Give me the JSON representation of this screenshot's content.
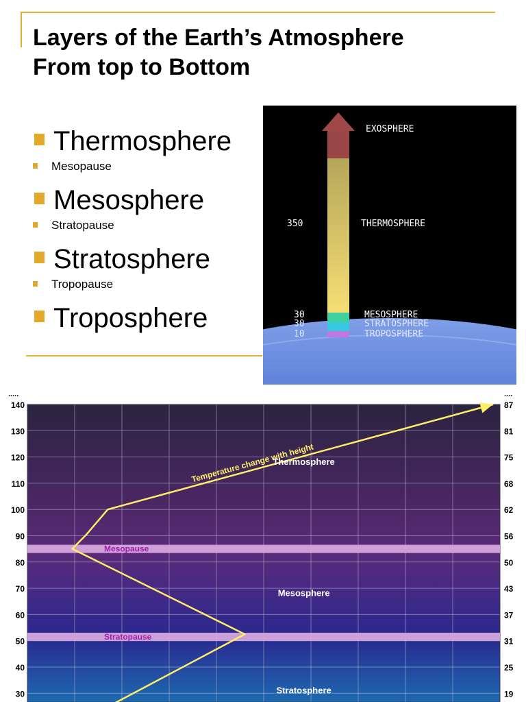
{
  "slide": {
    "title_line1": "Layers of the Earth’s Atmosphere",
    "title_line2": "From top to Bottom"
  },
  "bullets": [
    {
      "text": "Thermosphere",
      "level": 1
    },
    {
      "text": "Mesopause",
      "level": 2
    },
    {
      "text": "Mesosphere",
      "level": 1
    },
    {
      "text": "Stratopause",
      "level": 2
    },
    {
      "text": "Stratosphere",
      "level": 1
    },
    {
      "text": "Tropopause",
      "level": 2
    },
    {
      "text": "Troposphere",
      "level": 1
    }
  ],
  "atmosphere_image": {
    "labels": {
      "exosphere": "EXOSPHERE",
      "thermosphere": "THERMOSPHERE",
      "mesosphere": "MESOSPHERE",
      "stratosphere": "STRATOSPHERE",
      "troposphere": "TROPOSPHERE"
    },
    "altitudes": {
      "thermosphere": "350",
      "mesosphere": "30",
      "stratosphere": "30",
      "troposphere": "10"
    },
    "colors": {
      "background": "#000000",
      "arrow_head": "#a04848",
      "column_top": "#c8b55c",
      "column_bottom": "#f2dc72",
      "mesosphere_band": "#3fd0a0",
      "stratosphere_band": "#35c8e0",
      "troposphere_band": "#c078e0",
      "earth": "#5a7fd8"
    }
  },
  "chart_data": {
    "type": "line",
    "left_axis": {
      "corner_label": ".....",
      "ticks": [
        140,
        130,
        120,
        110,
        100,
        90,
        80,
        70,
        60,
        50,
        40,
        30
      ],
      "range": [
        25,
        140
      ]
    },
    "right_axis": {
      "corner_label": "....",
      "ticks": [
        87,
        81,
        75,
        68,
        62,
        56,
        50,
        43,
        37,
        31,
        25,
        19
      ]
    },
    "vertical_gridlines": 9,
    "grid": true,
    "series": [
      {
        "values_xy": [
          [
            1.35,
            21.5
          ],
          [
            4.6,
            52.5
          ],
          [
            0.95,
            85
          ],
          [
            1.25,
            90.5
          ],
          [
            1.7,
            100
          ],
          [
            9.85,
            140
          ]
        ],
        "color": "#ffee66",
        "label": "Temperature change with height"
      }
    ],
    "x_range": [
      0,
      10
    ],
    "bands": [
      {
        "label": "Mesopause",
        "altitude": 85,
        "color": "#d9a9e0",
        "label_color": "#a020b0"
      },
      {
        "label": "Stratopause",
        "altitude": 51.5,
        "color": "#d9a9e0",
        "label_color": "#a020b0"
      }
    ],
    "region_labels": [
      {
        "text": "Thermosphere",
        "x": 5.85,
        "y": 117
      },
      {
        "text": "Mesosphere",
        "x": 5.85,
        "y": 67
      },
      {
        "text": "Stratosphere",
        "x": 5.85,
        "y": 30
      }
    ],
    "colors": {
      "top": "#2a2440",
      "mid": "#5b2a7a",
      "lower": "#2a2890",
      "bottom": "#1c6ab0",
      "grid": "#b8b8d0"
    }
  }
}
